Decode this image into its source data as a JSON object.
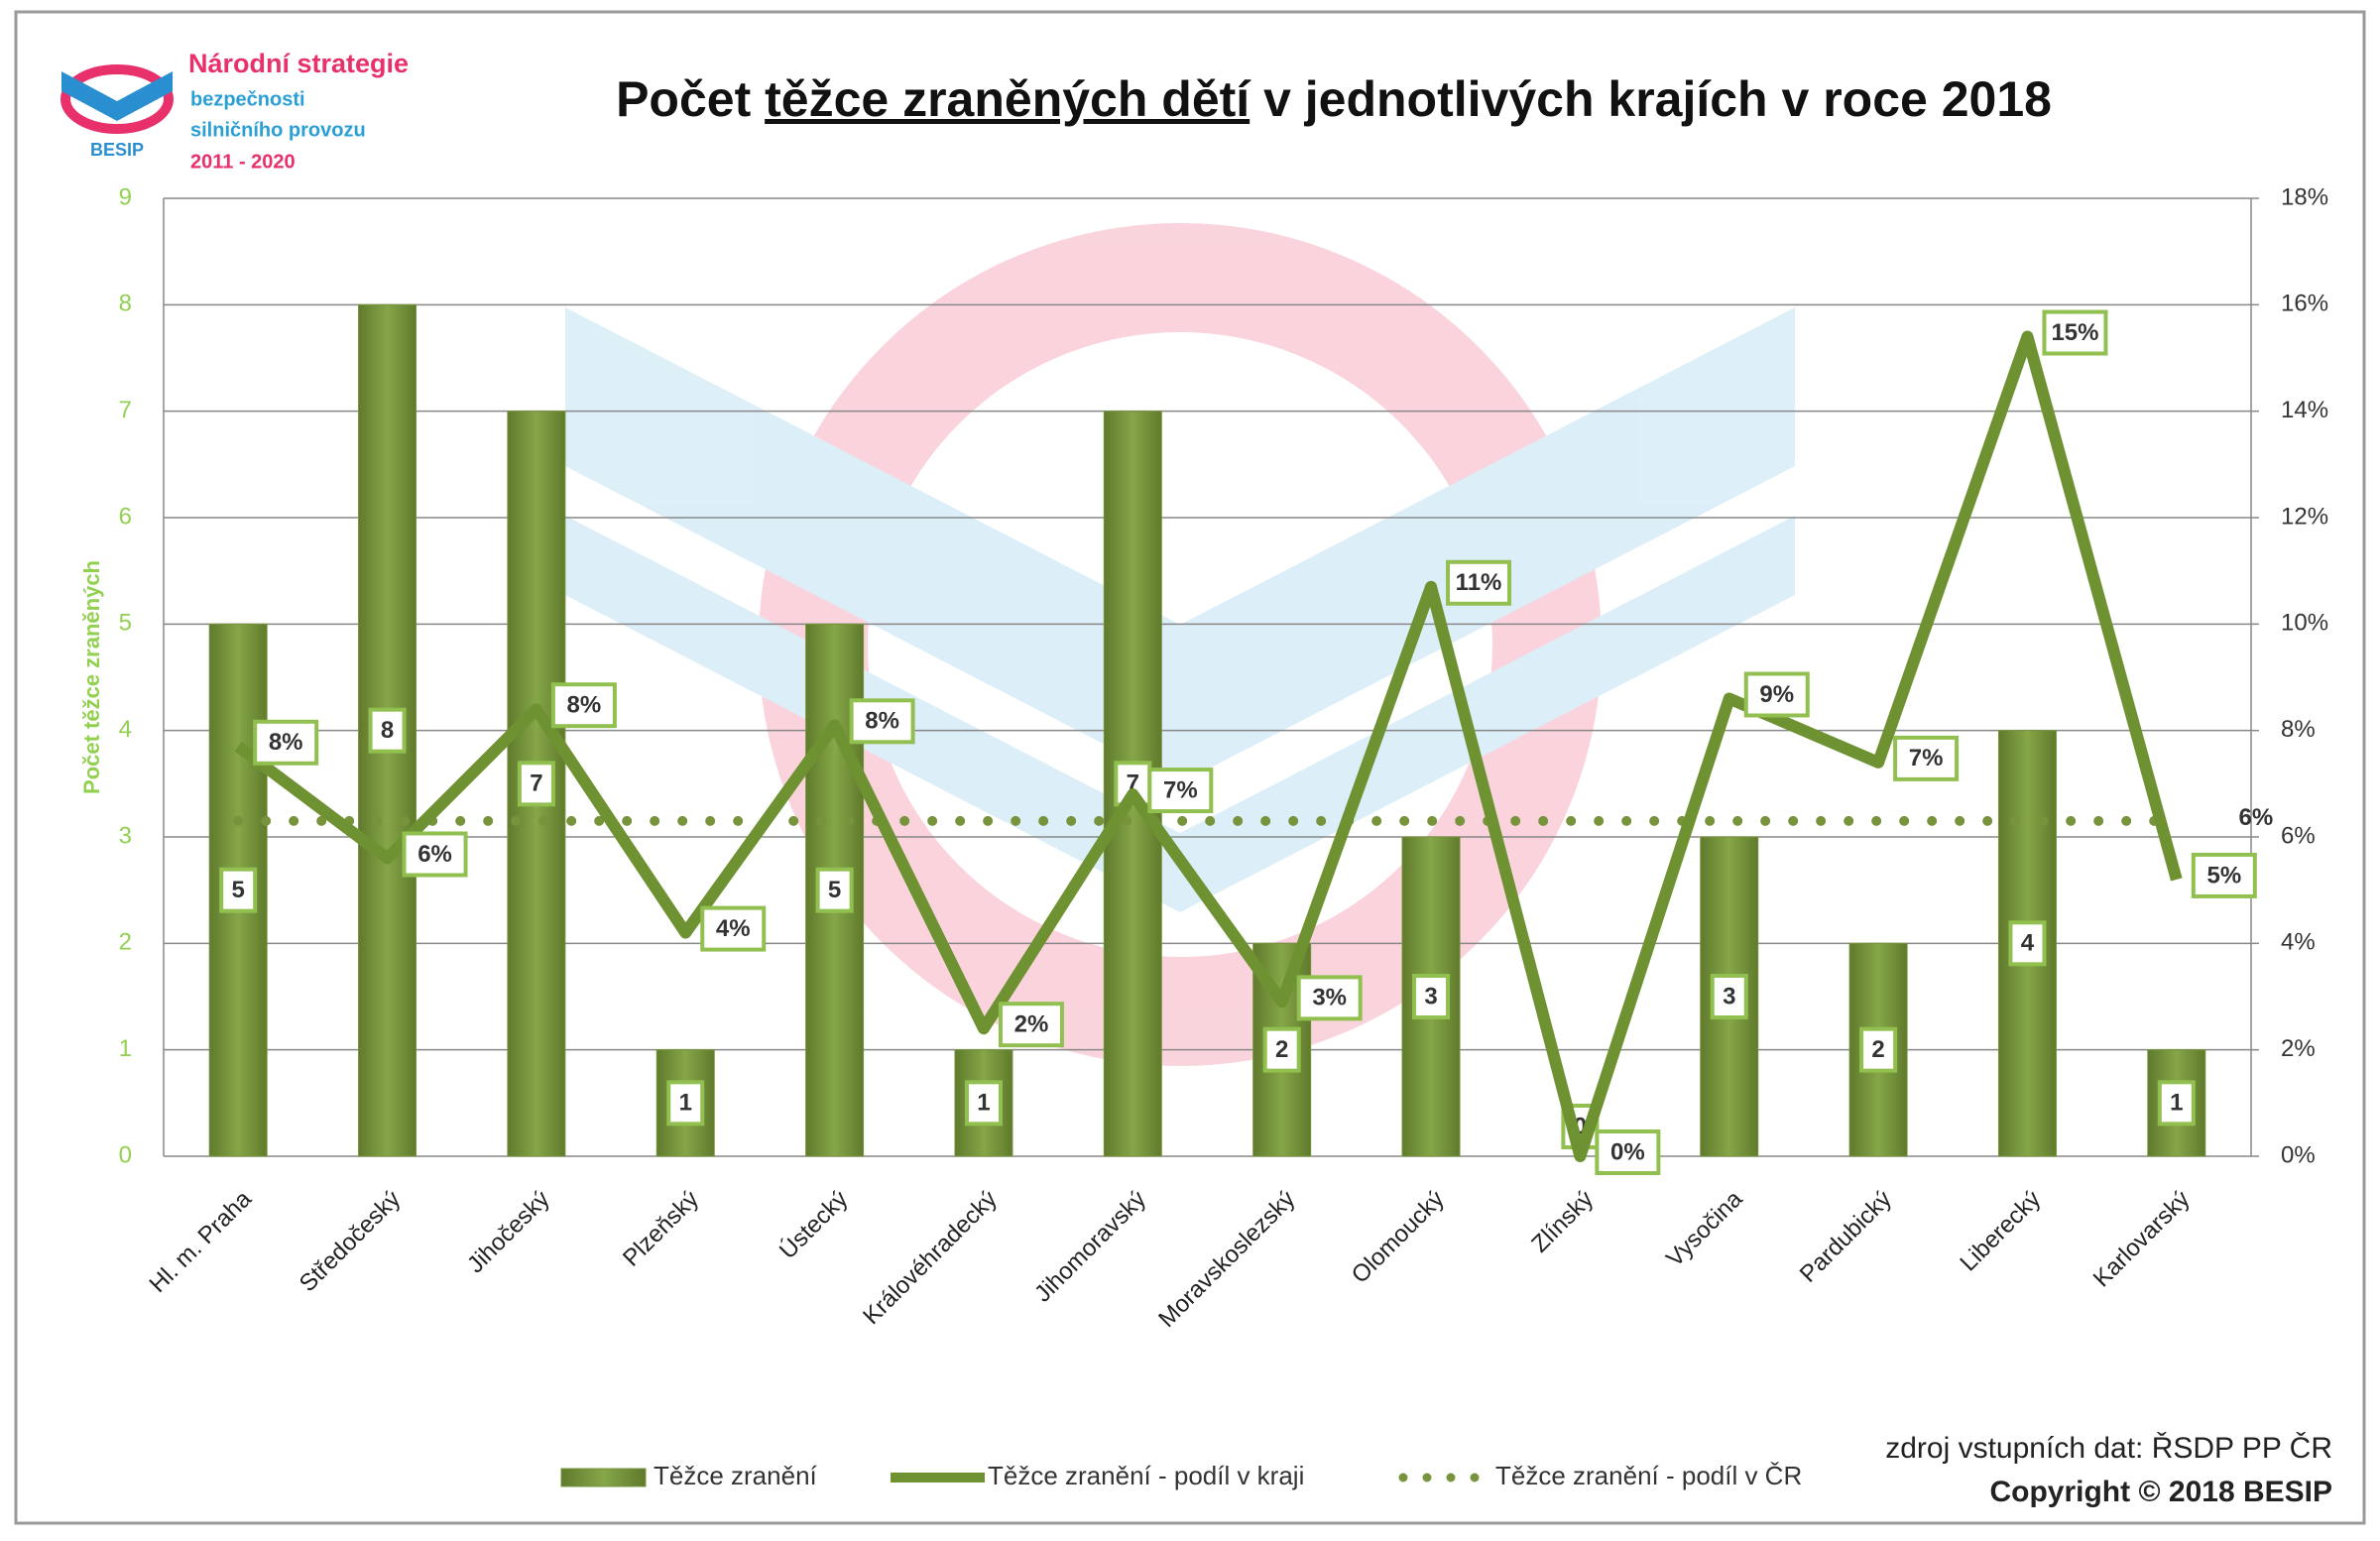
{
  "chart_data": {
    "type": "bar",
    "title": [
      "Počet ",
      "těžce zraněných dětí",
      " v jednotlivých krajích v roce 2018"
    ],
    "logo": {
      "lines": [
        "Národní strategie",
        "bezpečnosti",
        "silničního provozu",
        "2011 - 2020"
      ],
      "brand": "BESIP"
    },
    "y_label": "Počet těžce zraněných",
    "source": "zdroj vstupních dat: ŘSDP PP ČR",
    "copyright": "Copyright © 2018 BESIP",
    "categories": [
      "Hl. m. Praha",
      "Středočeský",
      "Jihočeský",
      "Plzeňský",
      "Ústecký",
      "Královéhradecký",
      "Jihomoravský",
      "Moravskoslezský",
      "Olomoucký",
      "Zlínský",
      "Vysočina",
      "Pardubický",
      "Liberecký",
      "Karlovarský"
    ],
    "series": [
      {
        "name": "Těžce zranění",
        "type": "bar",
        "color": "#77933c",
        "values": [
          5,
          8,
          7,
          1,
          5,
          1,
          7,
          2,
          3,
          0,
          3,
          2,
          4,
          1
        ]
      },
      {
        "name": "Těžce zranění - podíl v kraji",
        "type": "line",
        "axis": "y2",
        "color": "#6e9232",
        "values": [
          7.7,
          5.6,
          8.4,
          4.2,
          8.1,
          2.4,
          6.8,
          2.9,
          10.7,
          0,
          8.6,
          7.4,
          15.4,
          5.2
        ],
        "value_labels": [
          "8%",
          "6%",
          "8%",
          "4%",
          "8%",
          "2%",
          "7%",
          "3%",
          "11%",
          "0%",
          "9%",
          "7%",
          "15%",
          "5%"
        ]
      },
      {
        "name": "Těžce zranění - podíl v ČR",
        "type": "dotted",
        "axis": "y2",
        "color": "#77933c",
        "values": [
          6.3,
          6.3,
          6.3,
          6.3,
          6.3,
          6.3,
          6.3,
          6.3,
          6.3,
          6.3,
          6.3,
          6.3,
          6.3,
          6.3
        ],
        "value_labels": [
          null,
          null,
          null,
          null,
          null,
          null,
          null,
          null,
          null,
          null,
          null,
          null,
          null,
          "6%"
        ]
      }
    ],
    "ylim": [
      0,
      9
    ],
    "yticks": [
      0,
      1,
      2,
      3,
      4,
      5,
      6,
      7,
      8,
      9
    ],
    "y2lim": [
      0,
      18
    ],
    "y2ticks": [
      {
        "value": 0,
        "label": "0%"
      },
      {
        "value": 2,
        "label": "2%"
      },
      {
        "value": 4,
        "label": "4%"
      },
      {
        "value": 6,
        "label": "6%"
      },
      {
        "value": 8,
        "label": "8%"
      },
      {
        "value": 10,
        "label": "10%"
      },
      {
        "value": 12,
        "label": "12%"
      },
      {
        "value": 14,
        "label": "14%"
      },
      {
        "value": 16,
        "label": "16%"
      },
      {
        "value": 18,
        "label": "18%"
      }
    ],
    "grid": true
  }
}
